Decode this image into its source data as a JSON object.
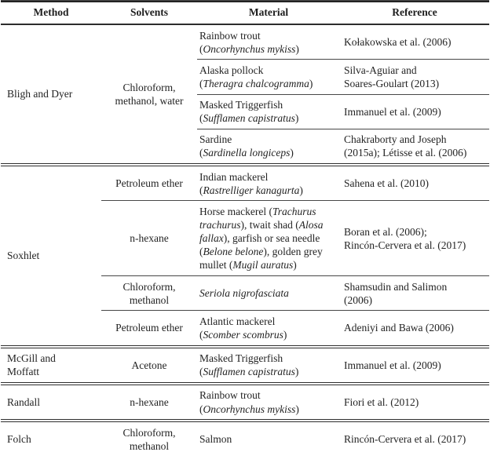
{
  "table": {
    "headers": [
      "Method",
      "Solvents",
      "Material",
      "Reference"
    ],
    "rule_color": "#2e2e2e",
    "text_color": "#232323",
    "sections": [
      {
        "method": "Bligh and Dyer",
        "solvents": "Chloroform,\nmethanol, water",
        "rows": [
          {
            "material": "Rainbow trout\n(*Oncorhynchus mykiss*)",
            "reference": "Kołakowska et al. (2006)"
          },
          {
            "material": "Alaska pollock\n(*Theragra chalcogramma*)",
            "reference": "Silva-Aguiar and\nSoares-Goulart (2013)"
          },
          {
            "material": "Masked Triggerfish\n(*Sufflamen capistratus*)",
            "reference": "Immanuel et al. (2009)"
          },
          {
            "material": "Sardine\n(*Sardinella longiceps*)",
            "reference": "Chakraborty and Joseph\n(2015a); Létisse et al. (2006)"
          }
        ]
      },
      {
        "method": "Soxhlet",
        "rows": [
          {
            "solvents": "Petroleum ether",
            "material": "Indian mackerel\n(*Rastrelliger kanagurta*)",
            "reference": "Sahena et al. (2010)"
          },
          {
            "solvents": "n-hexane",
            "material": "Horse mackerel (*Trachurus trachurus*), twait shad (*Alosa fallax*), garfish or sea needle (*Belone belone*), golden grey mullet (*Mugil auratus*)",
            "reference": "Boran et al. (2006);\nRincón-Cervera et al. (2017)"
          },
          {
            "solvents": "Chloroform,\nmethanol",
            "material": "*Seriola nigrofasciata*",
            "reference": "Shamsudin and Salimon\n(2006)"
          },
          {
            "solvents": "Petroleum ether",
            "material": "Atlantic mackerel\n(*Scomber scombrus*)",
            "reference": "Adeniyi and Bawa (2006)"
          }
        ]
      },
      {
        "method": "McGill and\nMoffatt",
        "rows": [
          {
            "solvents": "Acetone",
            "material": "Masked Triggerfish\n(*Sufflamen capistratus*)",
            "reference": "Immanuel et al. (2009)"
          }
        ]
      },
      {
        "method": "Randall",
        "rows": [
          {
            "solvents": "n-hexane",
            "material": "Rainbow trout\n(*Oncorhynchus mykiss*)",
            "reference": "Fiori et al. (2012)"
          }
        ]
      },
      {
        "method": "Folch",
        "rows": [
          {
            "solvents": "Chloroform,\nmethanol",
            "material": "Salmon",
            "reference": "Rincón-Cervera et al. (2017)"
          }
        ]
      }
    ]
  }
}
